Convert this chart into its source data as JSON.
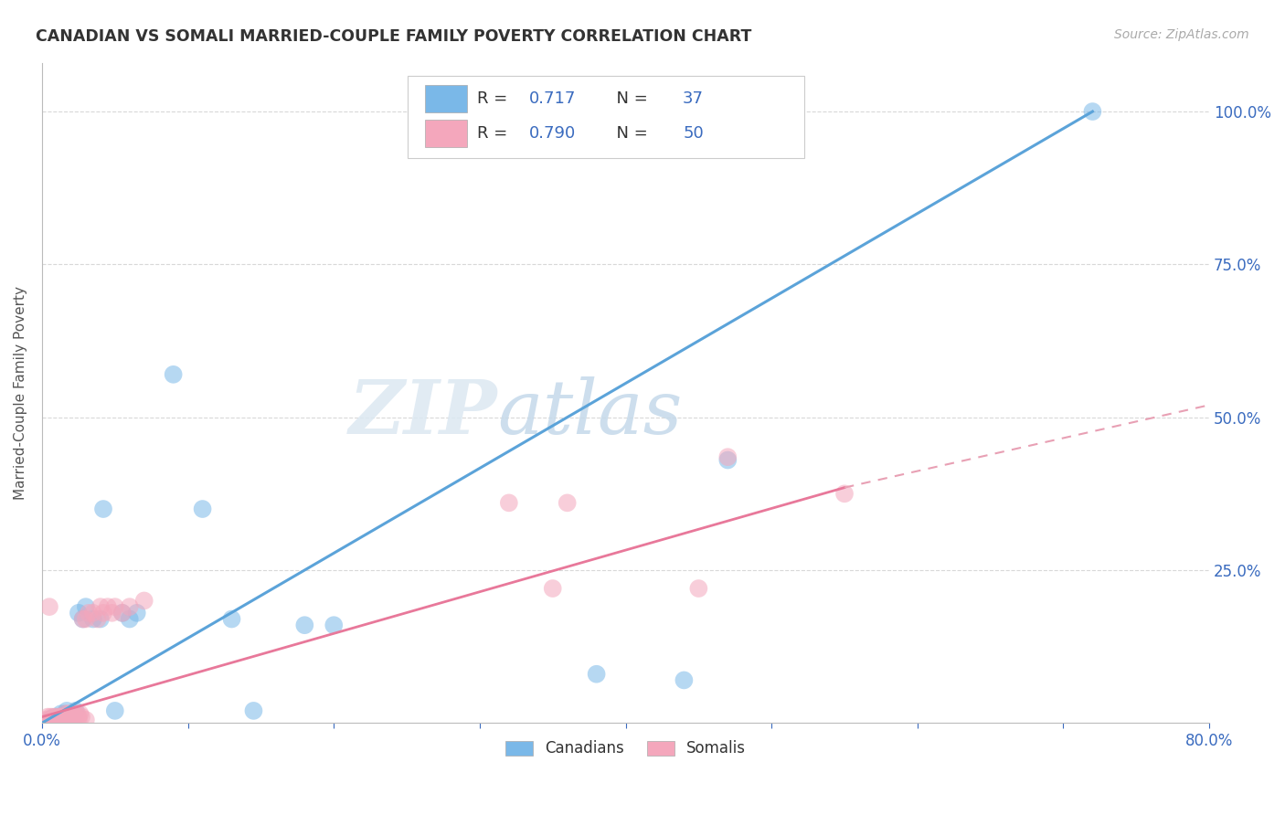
{
  "title": "CANADIAN VS SOMALI MARRIED-COUPLE FAMILY POVERTY CORRELATION CHART",
  "source": "Source: ZipAtlas.com",
  "ylabel": "Married-Couple Family Poverty",
  "ytick_labels": [
    "100.0%",
    "75.0%",
    "50.0%",
    "25.0%"
  ],
  "ytick_values": [
    1.0,
    0.75,
    0.5,
    0.25
  ],
  "xlim": [
    0.0,
    0.8
  ],
  "ylim": [
    0.0,
    1.08
  ],
  "canadian_color": "#7ab8e8",
  "somali_color": "#f4a7bc",
  "canadian_line_color": "#5ba3d9",
  "somali_line_color": "#e8789a",
  "somali_dash_color": "#e8a0b4",
  "R_canadian": 0.717,
  "N_canadian": 37,
  "R_somali": 0.79,
  "N_somali": 50,
  "legend_text_color": "#333333",
  "legend_num_color": "#3a6bbf",
  "watermark_zip": "ZIP",
  "watermark_atlas": "atlas",
  "background_color": "#ffffff",
  "grid_color": "#d8d8d8",
  "canadian_points": [
    [
      0.005,
      0.005
    ],
    [
      0.007,
      0.008
    ],
    [
      0.008,
      0.005
    ],
    [
      0.009,
      0.01
    ],
    [
      0.01,
      0.005
    ],
    [
      0.012,
      0.01
    ],
    [
      0.013,
      0.015
    ],
    [
      0.014,
      0.01
    ],
    [
      0.015,
      0.012
    ],
    [
      0.016,
      0.015
    ],
    [
      0.017,
      0.02
    ],
    [
      0.018,
      0.01
    ],
    [
      0.019,
      0.01
    ],
    [
      0.02,
      0.005
    ],
    [
      0.021,
      0.01
    ],
    [
      0.022,
      0.015
    ],
    [
      0.023,
      0.02
    ],
    [
      0.025,
      0.18
    ],
    [
      0.028,
      0.17
    ],
    [
      0.03,
      0.19
    ],
    [
      0.035,
      0.17
    ],
    [
      0.04,
      0.17
    ],
    [
      0.042,
      0.35
    ],
    [
      0.05,
      0.02
    ],
    [
      0.055,
      0.18
    ],
    [
      0.06,
      0.17
    ],
    [
      0.065,
      0.18
    ],
    [
      0.09,
      0.57
    ],
    [
      0.11,
      0.35
    ],
    [
      0.13,
      0.17
    ],
    [
      0.145,
      0.02
    ],
    [
      0.18,
      0.16
    ],
    [
      0.2,
      0.16
    ],
    [
      0.38,
      0.08
    ],
    [
      0.44,
      0.07
    ],
    [
      0.47,
      0.43
    ],
    [
      0.72,
      1.0
    ]
  ],
  "somali_points": [
    [
      0.002,
      0.005
    ],
    [
      0.004,
      0.01
    ],
    [
      0.005,
      0.005
    ],
    [
      0.006,
      0.01
    ],
    [
      0.007,
      0.005
    ],
    [
      0.008,
      0.01
    ],
    [
      0.009,
      0.005
    ],
    [
      0.01,
      0.01
    ],
    [
      0.011,
      0.005
    ],
    [
      0.012,
      0.01
    ],
    [
      0.013,
      0.01
    ],
    [
      0.014,
      0.005
    ],
    [
      0.015,
      0.01
    ],
    [
      0.016,
      0.015
    ],
    [
      0.017,
      0.01
    ],
    [
      0.018,
      0.015
    ],
    [
      0.019,
      0.01
    ],
    [
      0.02,
      0.015
    ],
    [
      0.021,
      0.01
    ],
    [
      0.022,
      0.015
    ],
    [
      0.023,
      0.01
    ],
    [
      0.024,
      0.015
    ],
    [
      0.025,
      0.01
    ],
    [
      0.026,
      0.015
    ],
    [
      0.027,
      0.01
    ],
    [
      0.028,
      0.17
    ],
    [
      0.03,
      0.17
    ],
    [
      0.032,
      0.18
    ],
    [
      0.035,
      0.18
    ],
    [
      0.038,
      0.17
    ],
    [
      0.04,
      0.19
    ],
    [
      0.042,
      0.18
    ],
    [
      0.045,
      0.19
    ],
    [
      0.048,
      0.18
    ],
    [
      0.05,
      0.19
    ],
    [
      0.055,
      0.18
    ],
    [
      0.06,
      0.19
    ],
    [
      0.07,
      0.2
    ],
    [
      0.005,
      0.19
    ],
    [
      0.32,
      0.36
    ],
    [
      0.45,
      0.22
    ],
    [
      0.47,
      0.435
    ],
    [
      0.55,
      0.375
    ],
    [
      0.35,
      0.22
    ],
    [
      0.36,
      0.36
    ],
    [
      0.01,
      0.005
    ],
    [
      0.015,
      0.005
    ],
    [
      0.02,
      0.005
    ],
    [
      0.025,
      0.005
    ],
    [
      0.03,
      0.005
    ]
  ],
  "canadian_line": [
    [
      0.0,
      0.0
    ],
    [
      0.72,
      1.0
    ]
  ],
  "somali_solid_line": [
    [
      0.0,
      0.01
    ],
    [
      0.55,
      0.385
    ]
  ],
  "somali_dash_line": [
    [
      0.55,
      0.385
    ],
    [
      0.8,
      0.52
    ]
  ]
}
